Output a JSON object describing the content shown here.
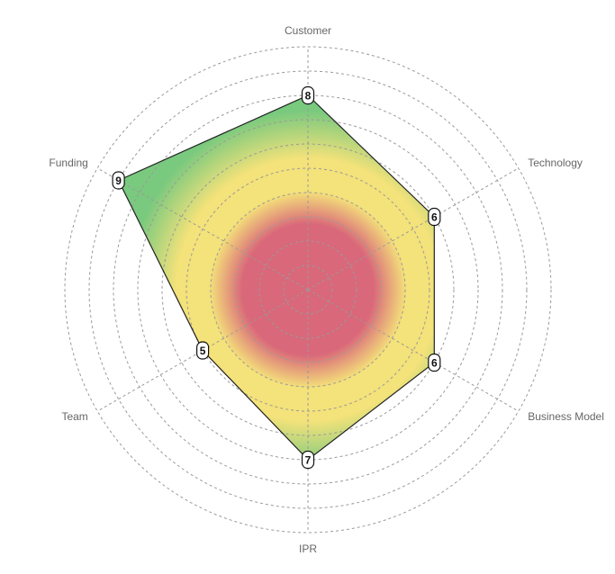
{
  "chart_data": {
    "type": "radar",
    "title": "",
    "axes": [
      "Customer",
      "Technology",
      "Business Model",
      "IPR",
      "Team",
      "Funding"
    ],
    "series": [
      {
        "values": [
          8,
          6,
          6,
          7,
          5,
          9
        ]
      }
    ],
    "rlim": [
      0,
      10
    ],
    "ring_levels": [
      1,
      2,
      3,
      4,
      5,
      6,
      7,
      8,
      9,
      10
    ],
    "grid": true,
    "legend": "none",
    "fill_gradient": {
      "type": "radial",
      "low_color": "#d9687a",
      "mid_color": "#f4e27a",
      "high_color": "#79c97e"
    }
  }
}
